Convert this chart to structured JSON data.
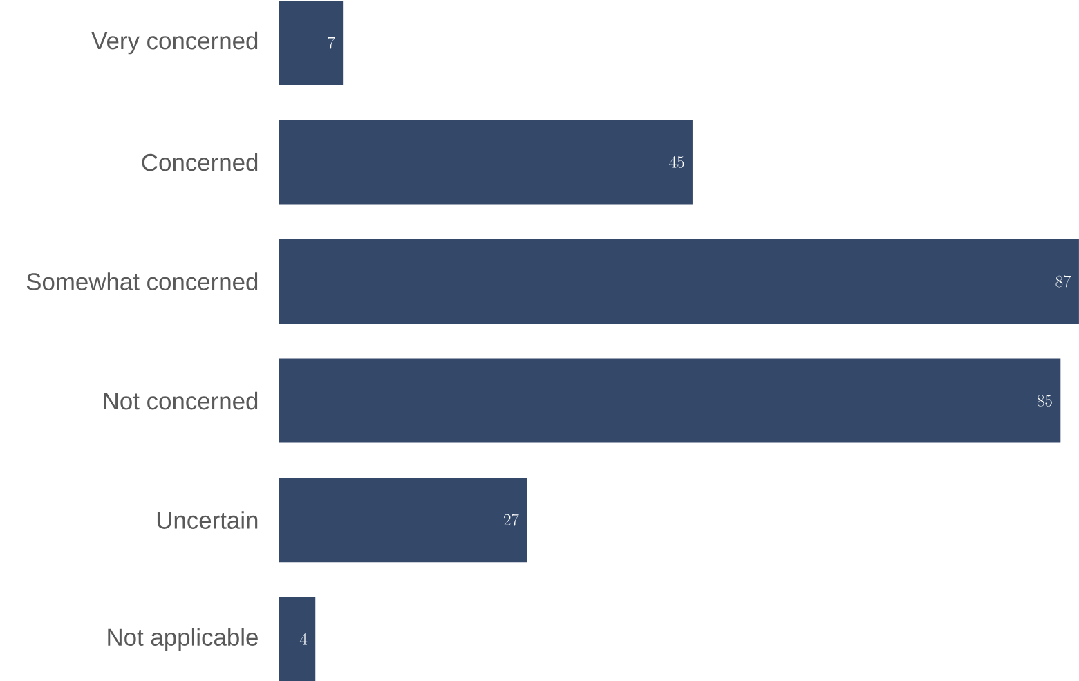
{
  "chart_data": {
    "type": "bar",
    "orientation": "horizontal",
    "categories": [
      "Very concerned",
      "Concerned",
      "Somewhat concerned",
      "Not concerned",
      "Uncertain",
      "Not applicable"
    ],
    "values": [
      7,
      45,
      87,
      85,
      27,
      4
    ],
    "color": "#34496a",
    "xlim": [
      0,
      87
    ],
    "data_labels": true
  }
}
